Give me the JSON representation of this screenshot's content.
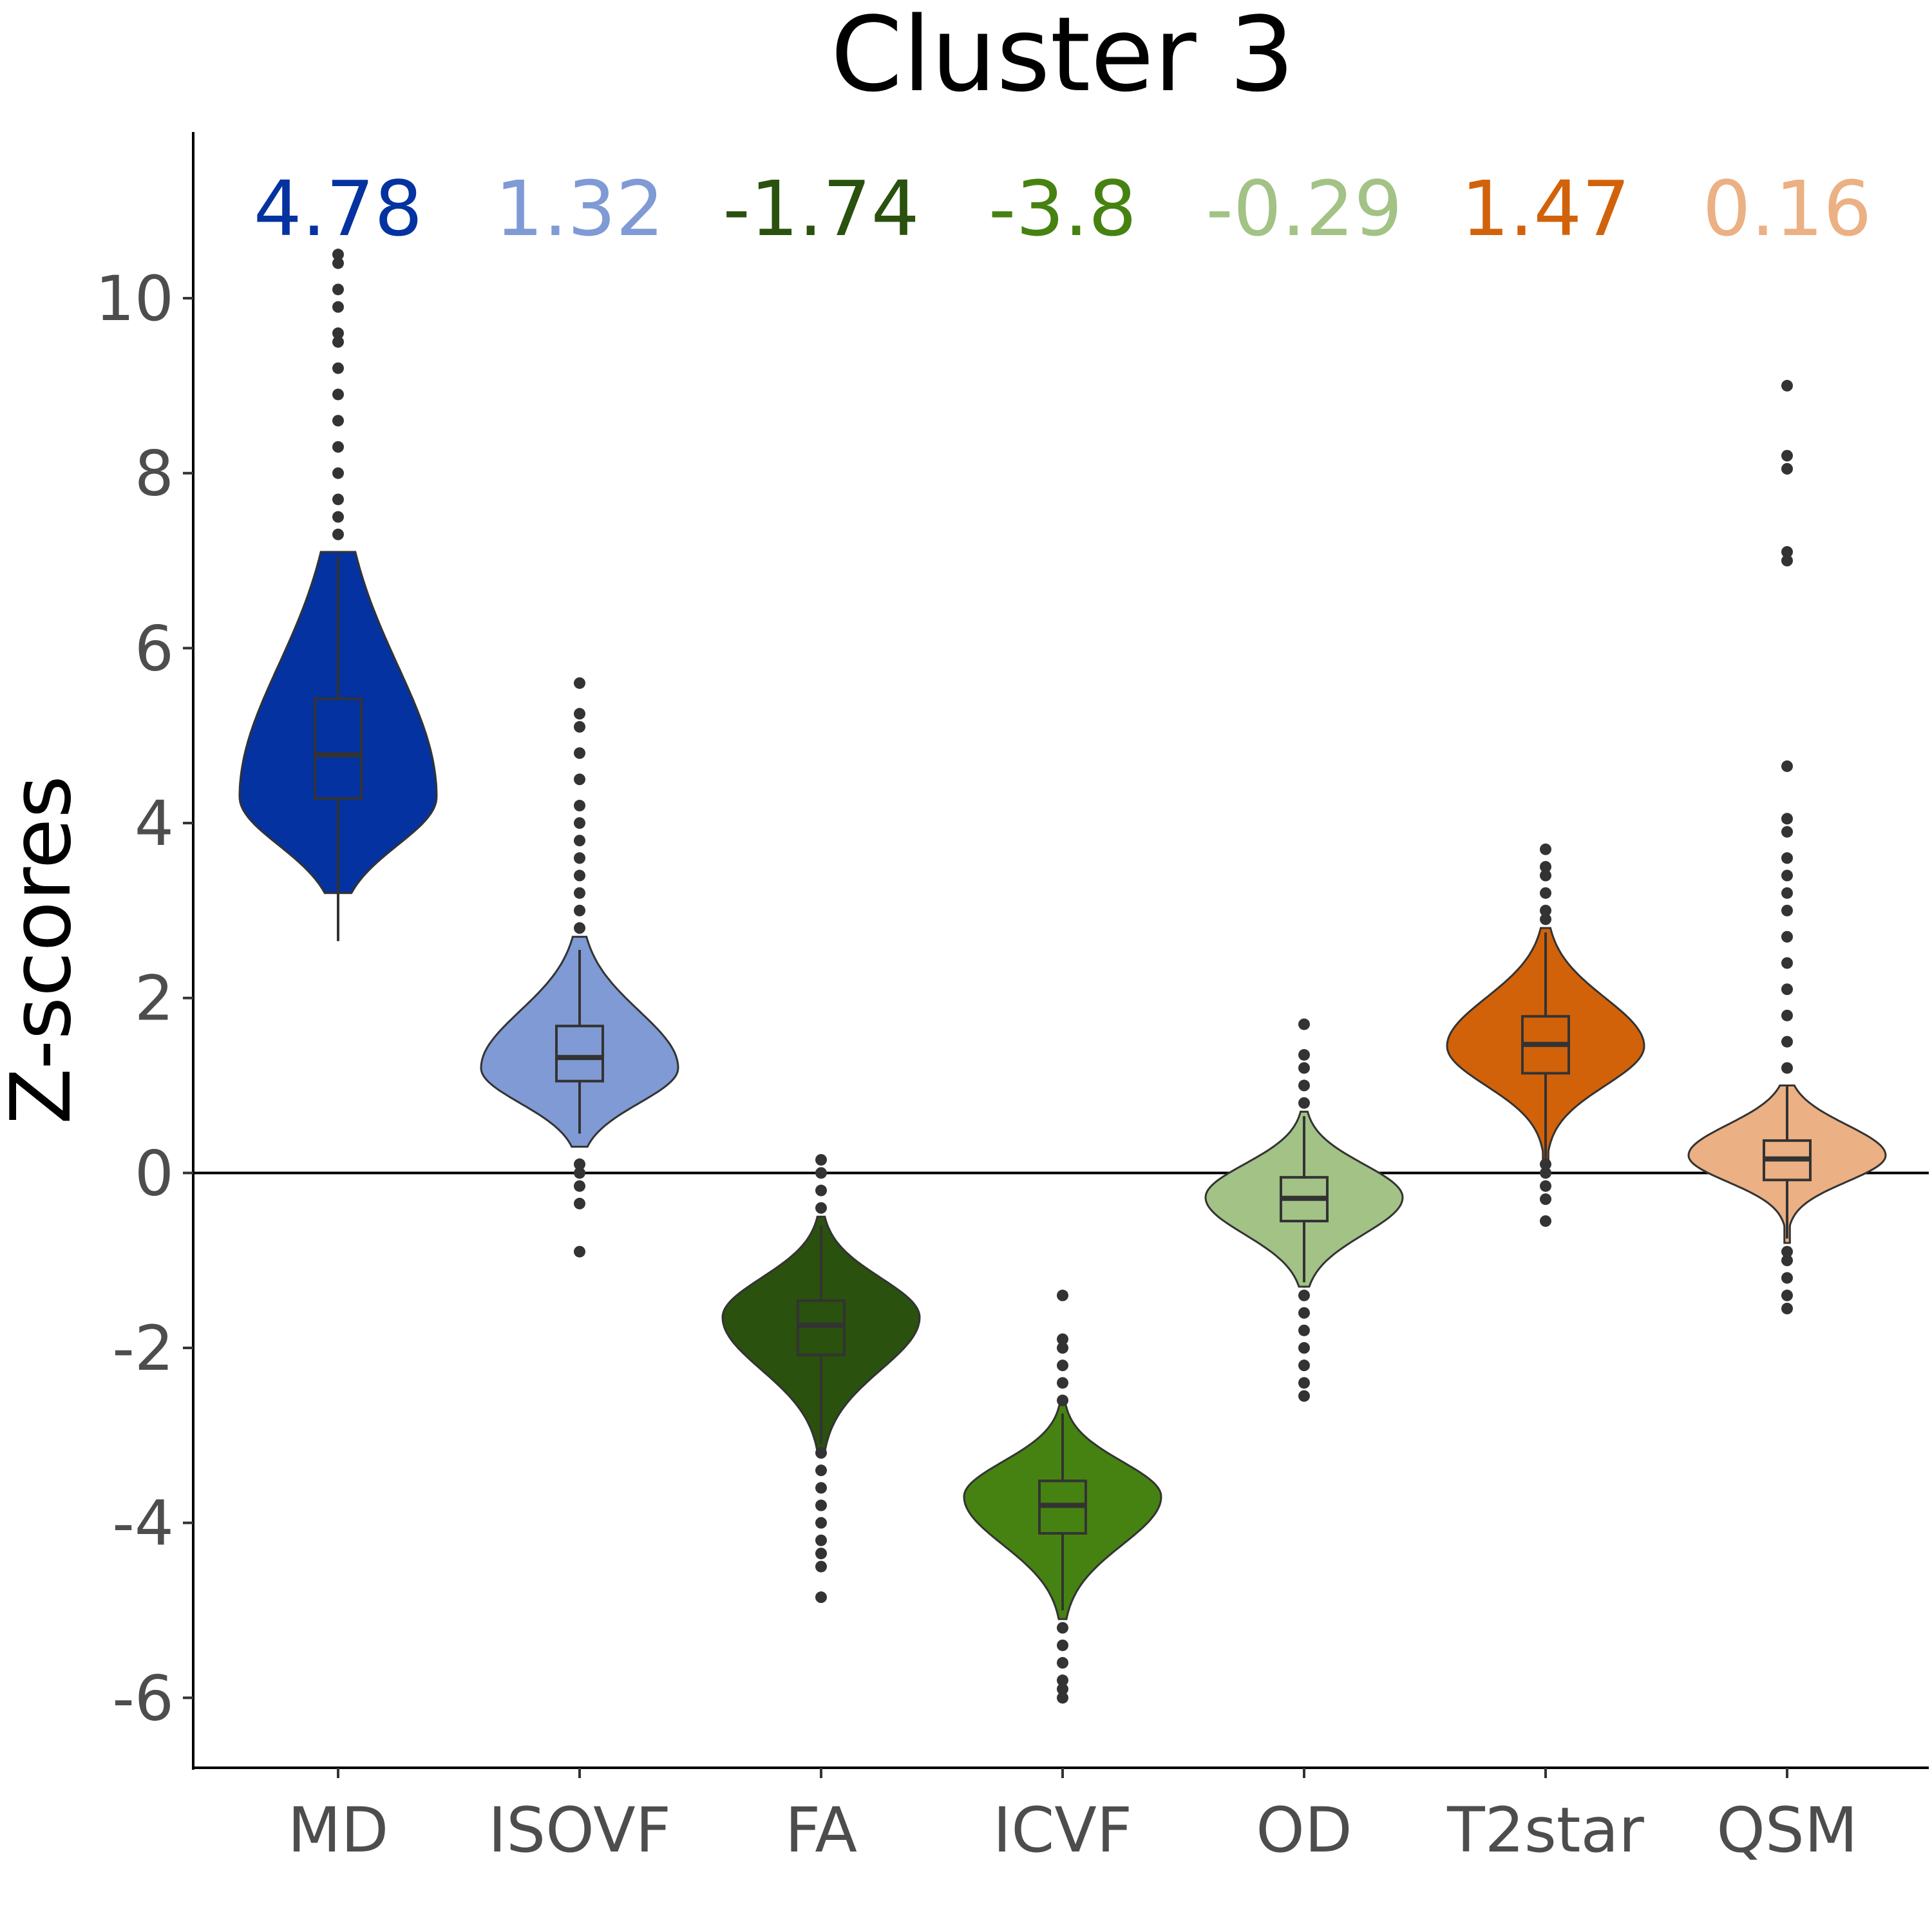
{
  "chart_data": {
    "type": "violin",
    "title": "Cluster 3",
    "xlabel": "",
    "ylabel": "Z-scores",
    "ylim": [
      -6.8,
      11.9
    ],
    "yticks": [
      -6,
      -4,
      -2,
      0,
      2,
      4,
      6,
      8,
      10
    ],
    "ytick_labels": [
      "-6",
      "-4",
      "-2",
      "0",
      "2",
      "4",
      "6",
      "8",
      "10"
    ],
    "reference_line": 0,
    "grid": false,
    "legend": "none",
    "categories": [
      "MD",
      "ISOVF",
      "FA",
      "ICVF",
      "OD",
      "T2star",
      "QSM"
    ],
    "series": [
      {
        "category": "MD",
        "color": "#0432A0",
        "mean_label": "4.78",
        "q1": 4.28,
        "median": 4.78,
        "q3": 5.42,
        "whisker_low": 2.65,
        "whisker_high": 7.05,
        "violin_min": 3.2,
        "violin_max": 7.1,
        "peak": 4.3,
        "spread_low": 0.55,
        "spread_high": 1.5,
        "max_half_width": 0.9,
        "outliers": [
          7.3,
          7.5,
          7.7,
          8.0,
          8.3,
          8.6,
          8.9,
          9.2,
          9.5,
          9.6,
          9.9,
          10.1,
          10.4,
          10.5
        ]
      },
      {
        "category": "ISOVF",
        "color": "#7F9AD4",
        "mean_label": "1.32",
        "q1": 1.05,
        "median": 1.32,
        "q3": 1.68,
        "whisker_low": 0.45,
        "whisker_high": 2.55,
        "violin_min": 0.3,
        "violin_max": 2.7,
        "peak": 1.2,
        "spread_low": 0.4,
        "spread_high": 0.65,
        "max_half_width": 0.9,
        "outliers": [
          -0.9,
          -0.35,
          -0.15,
          0.0,
          0.1,
          2.8,
          3.0,
          3.2,
          3.4,
          3.6,
          3.8,
          4.0,
          4.2,
          4.5,
          4.8,
          5.1,
          5.25,
          5.6
        ]
      },
      {
        "category": "FA",
        "color": "#2A510E",
        "mean_label": "-1.74",
        "q1": -2.08,
        "median": -1.74,
        "q3": -1.46,
        "whisker_low": -3.1,
        "whisker_high": -0.6,
        "violin_min": -3.2,
        "violin_max": -0.5,
        "peak": -1.65,
        "spread_low": 0.6,
        "spread_high": 0.45,
        "max_half_width": 0.9,
        "outliers": [
          -4.85,
          -4.5,
          -4.35,
          -4.2,
          -4.0,
          -3.8,
          -3.6,
          -3.4,
          -3.2,
          -0.4,
          -0.2,
          0.0,
          0.15
        ]
      },
      {
        "category": "ICVF",
        "color": "#468211",
        "mean_label": "-3.8",
        "q1": -4.12,
        "median": -3.8,
        "q3": -3.52,
        "whisker_low": -5.0,
        "whisker_high": -2.75,
        "violin_min": -5.1,
        "violin_max": -2.6,
        "peak": -3.7,
        "spread_low": 0.55,
        "spread_high": 0.4,
        "max_half_width": 0.9,
        "outliers": [
          -6.0,
          -5.9,
          -5.8,
          -5.6,
          -5.4,
          -5.2,
          -2.6,
          -2.4,
          -2.2,
          -2.0,
          -1.9,
          -1.4
        ]
      },
      {
        "category": "OD",
        "color": "#A2C286",
        "mean_label": "-0.29",
        "q1": -0.55,
        "median": -0.29,
        "q3": -0.05,
        "whisker_low": -1.25,
        "whisker_high": 0.65,
        "violin_min": -1.3,
        "violin_max": 0.7,
        "peak": -0.28,
        "spread_low": 0.42,
        "spread_high": 0.38,
        "max_half_width": 0.9,
        "outliers": [
          -2.55,
          -2.4,
          -2.2,
          -2.0,
          -1.8,
          -1.6,
          -1.4,
          0.8,
          1.0,
          1.2,
          1.35,
          1.7
        ]
      },
      {
        "category": "T2star",
        "color": "#D2620A",
        "mean_label": "1.47",
        "q1": 1.14,
        "median": 1.47,
        "q3": 1.79,
        "whisker_low": 0.15,
        "whisker_high": 2.75,
        "violin_min": 0.1,
        "violin_max": 2.8,
        "peak": 1.45,
        "spread_low": 0.45,
        "spread_high": 0.55,
        "max_half_width": 0.9,
        "outliers": [
          -0.55,
          -0.3,
          -0.15,
          0.0,
          0.1,
          2.9,
          3.0,
          3.2,
          3.4,
          3.5,
          3.7
        ]
      },
      {
        "category": "QSM",
        "color": "#EBB083",
        "mean_label": "0.16",
        "q1": -0.08,
        "median": 0.16,
        "q3": 0.37,
        "whisker_low": -0.75,
        "whisker_high": 1.0,
        "violin_min": -0.8,
        "violin_max": 1.0,
        "peak": 0.2,
        "spread_low": 0.3,
        "spread_high": 0.35,
        "max_half_width": 0.9,
        "outliers": [
          -1.55,
          -1.4,
          -1.2,
          -1.0,
          -0.9,
          1.2,
          1.5,
          1.8,
          2.1,
          2.4,
          2.7,
          3.0,
          3.2,
          3.4,
          3.6,
          3.9,
          4.05,
          4.65,
          7.0,
          7.1,
          8.05,
          8.2,
          9.0
        ]
      }
    ]
  }
}
